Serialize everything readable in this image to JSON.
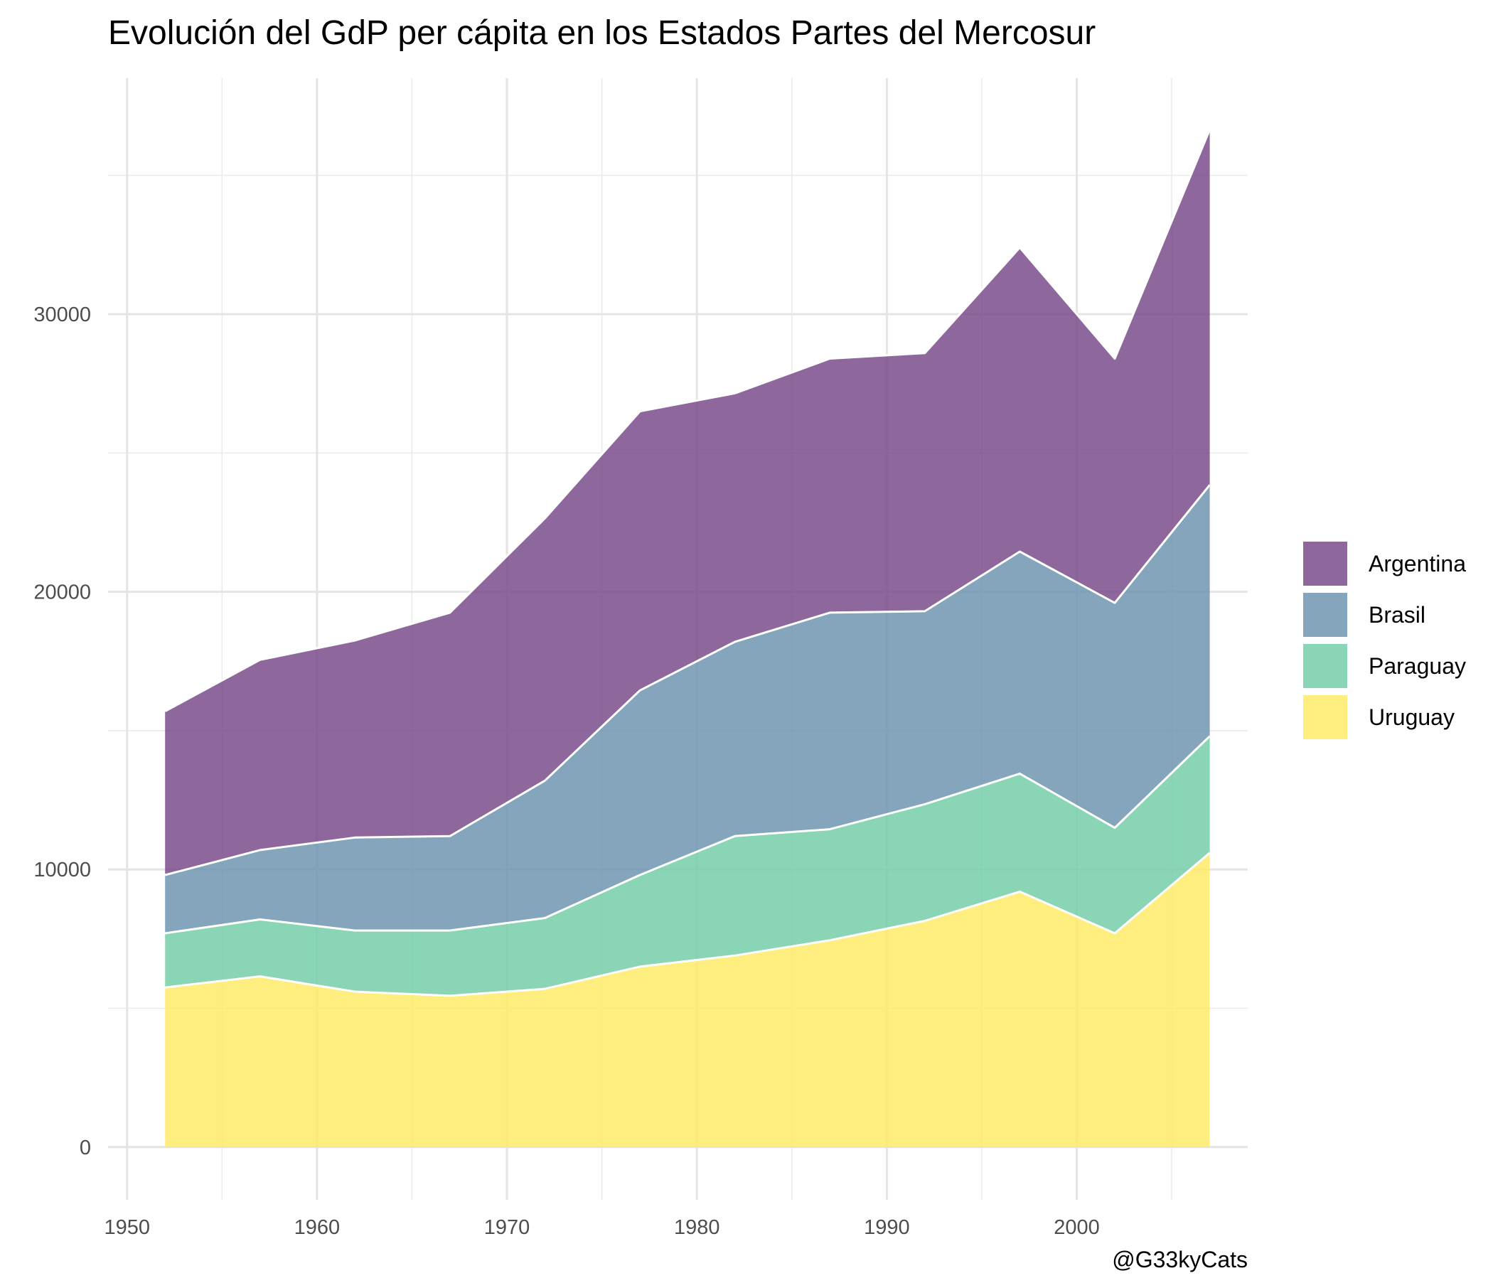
{
  "chart_data": {
    "type": "area",
    "stacked": true,
    "title": "Evolución del GdP per cápita en los Estados Partes del Mercosur",
    "xlabel": "",
    "ylabel": "",
    "caption": "@G33kyCats",
    "xlim": [
      1949,
      2009
    ],
    "ylim": [
      -1900,
      38500
    ],
    "x_ticks": [
      1950,
      1960,
      1970,
      1980,
      1990,
      2000
    ],
    "y_ticks": [
      0,
      10000,
      20000,
      30000
    ],
    "x_minor_ticks": [
      1955,
      1965,
      1975,
      1985,
      1995,
      2005
    ],
    "y_minor_ticks": [
      5000,
      15000,
      25000,
      35000
    ],
    "grid": true,
    "legend_position": "right",
    "x": [
      1952,
      1957,
      1962,
      1967,
      1972,
      1977,
      1982,
      1987,
      1992,
      1997,
      2002,
      2007
    ],
    "series": [
      {
        "name": "Argentina",
        "color": "#7b4e8c",
        "values": [
          5900,
          6850,
          7100,
          8050,
          9450,
          10050,
          8950,
          9150,
          9300,
          10950,
          8800,
          12800
        ]
      },
      {
        "name": "Brasil",
        "color": "#7096b0",
        "values": [
          2100,
          2500,
          3350,
          3400,
          4950,
          6650,
          7000,
          7800,
          6950,
          8000,
          8100,
          9050
        ]
      },
      {
        "name": "Paraguay",
        "color": "#76ceaa",
        "values": [
          1950,
          2050,
          2200,
          2350,
          2550,
          3300,
          4300,
          4000,
          4200,
          4250,
          3800,
          4200
        ]
      },
      {
        "name": "Uruguay",
        "color": "#fdeb6a",
        "values": [
          5750,
          6150,
          5600,
          5450,
          5700,
          6500,
          6900,
          7450,
          8150,
          9200,
          7700,
          10600
        ]
      }
    ]
  }
}
